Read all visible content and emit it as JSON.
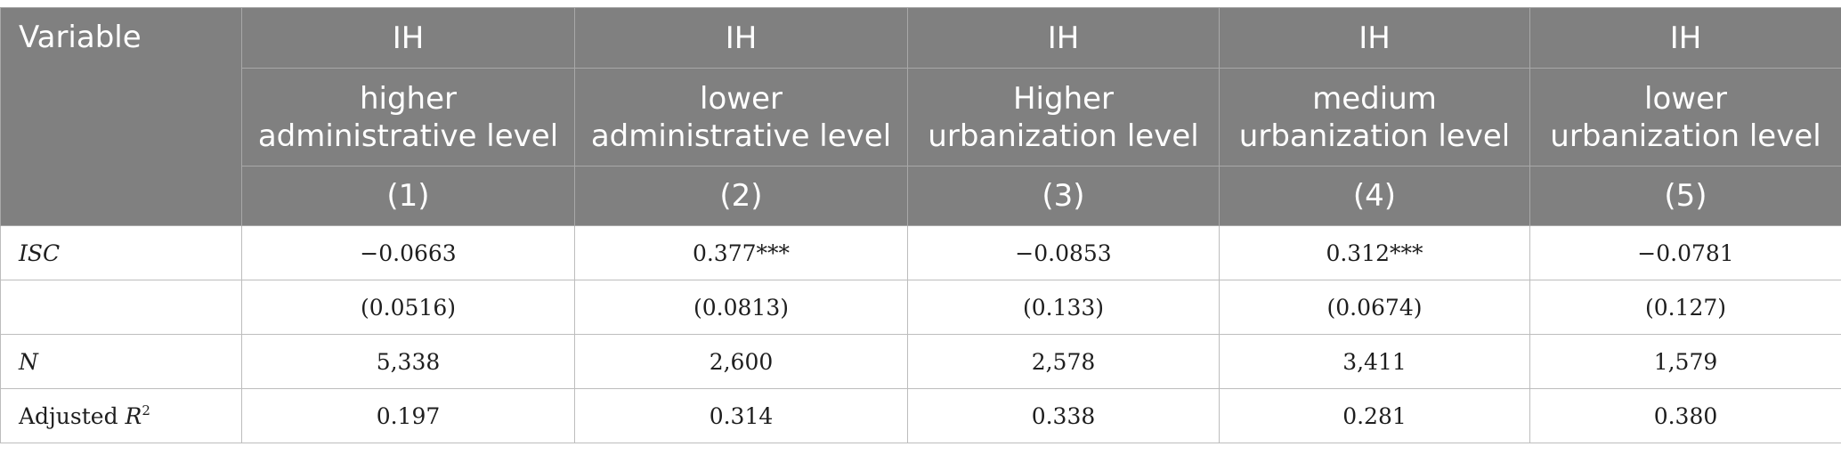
{
  "header": {
    "variable_label": "Variable",
    "dependent": [
      "IH",
      "IH",
      "IH",
      "IH",
      "IH"
    ],
    "subgroups": [
      [
        "higher",
        "administrative level"
      ],
      [
        "lower",
        "administrative level"
      ],
      [
        "Higher",
        "urbanization level"
      ],
      [
        "medium",
        "urbanization level"
      ],
      [
        "lower",
        "urbanization level"
      ]
    ],
    "column_numbers": [
      "(1)",
      "(2)",
      "(3)",
      "(4)",
      "(5)"
    ]
  },
  "rows": {
    "isc": {
      "label": "ISC",
      "values": [
        "−0.0663",
        "0.377***",
        "−0.0853",
        "0.312***",
        "−0.0781"
      ]
    },
    "se": {
      "label": "",
      "values": [
        "(0.0516)",
        "(0.0813)",
        "(0.133)",
        "(0.0674)",
        "(0.127)"
      ]
    },
    "n": {
      "label": "N",
      "values": [
        "5,338",
        "2,600",
        "2,578",
        "3,411",
        "1,579"
      ]
    },
    "r2": {
      "label_prefix": "Adjusted ",
      "label_var": "R",
      "label_sup": "2",
      "values": [
        "0.197",
        "0.314",
        "0.338",
        "0.281",
        "0.380"
      ]
    }
  }
}
